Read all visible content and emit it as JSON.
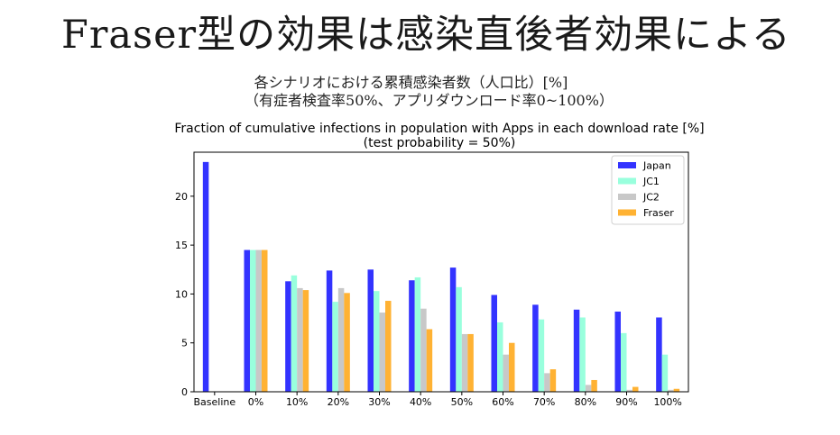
{
  "slide": {
    "title": "Fraser型の効果は感染直後者効果による",
    "subtitle_line1": "各シナリオにおける累積感染者数（人口比）[%]",
    "subtitle_line2": "（有症者検査率50%、アプリダウンロード率0~100%）"
  },
  "chart_data": {
    "type": "bar",
    "title": "Fraction of cumulative infections in population with Apps in each download rate [%]",
    "subtitle": "(test probability = 50%)",
    "xlabel": "",
    "ylabel": "",
    "categories": [
      "Baseline",
      "0%",
      "10%",
      "20%",
      "30%",
      "40%",
      "50%",
      "60%",
      "70%",
      "80%",
      "90%",
      "100%"
    ],
    "ylim": [
      0,
      24.5
    ],
    "yticks": [
      0,
      5,
      10,
      15,
      20
    ],
    "legend_position": "top-right",
    "grid": false,
    "series": [
      {
        "name": "Japan",
        "color": "#3333ff",
        "values": [
          23.5,
          14.5,
          11.3,
          12.4,
          12.5,
          11.4,
          12.7,
          9.9,
          8.9,
          8.4,
          8.2,
          7.6
        ]
      },
      {
        "name": "JC1",
        "color": "#99ffdd",
        "values": [
          null,
          14.5,
          11.9,
          9.2,
          10.3,
          11.7,
          10.7,
          7.1,
          7.4,
          7.6,
          6.0,
          3.8
        ]
      },
      {
        "name": "JC2",
        "color": "#c8c8c8",
        "values": [
          null,
          14.5,
          10.6,
          10.6,
          8.1,
          8.5,
          5.9,
          3.8,
          1.9,
          0.7,
          0.2,
          0.2
        ]
      },
      {
        "name": "Fraser",
        "color": "#ffb233",
        "values": [
          null,
          14.5,
          10.4,
          10.1,
          9.3,
          6.4,
          5.9,
          5.0,
          2.3,
          1.2,
          0.5,
          0.3
        ]
      }
    ]
  }
}
